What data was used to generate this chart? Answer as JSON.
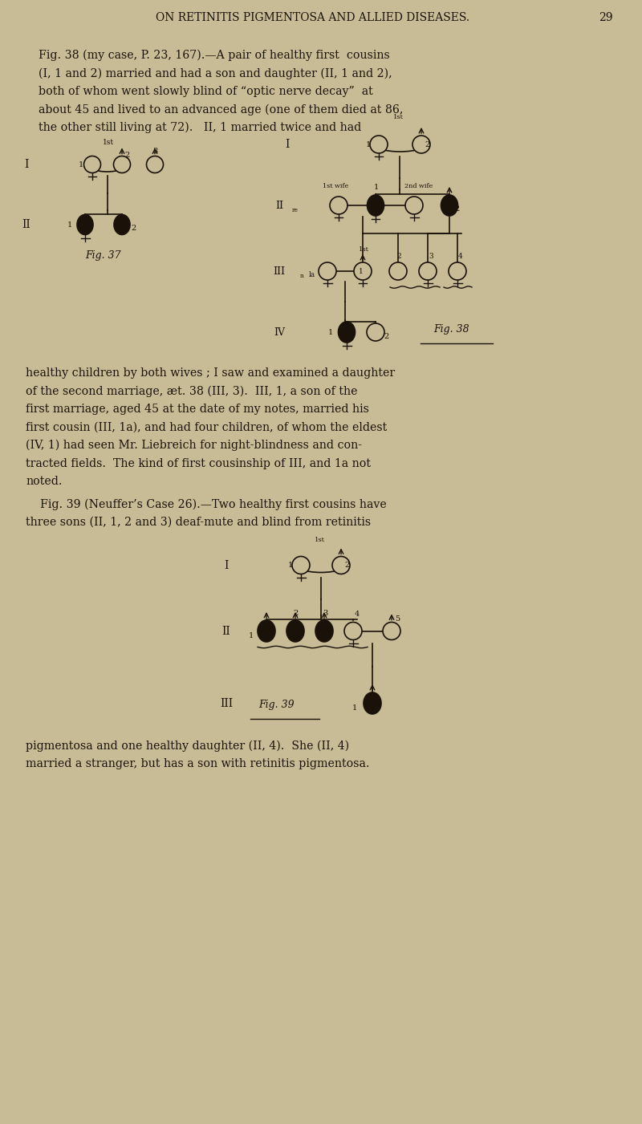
{
  "background_color": "#c8bc96",
  "text_color": "#1a1208",
  "header_text": "ON RETINITIS PIGMENTOSA AND ALLIED DISEASES.",
  "header_page": "29",
  "fig_width": 8.0,
  "fig_height": 14.01,
  "para1_lines": [
    "Fig. 38 (my case, P. 23, 167).—A pair of healthy first  cousins",
    "(I, 1 and 2) married and had a son and daughter (II, 1 and 2),",
    "both of whom went slowly blind of “optic nerve decay”  at",
    "about 45 and lived to an advanced age (one of them died at 86,",
    "the other still living at 72).   II, 1 married twice and had"
  ],
  "para2_lines": [
    "healthy children by both wives ; I saw and examined a daughter",
    "of the second marriage, æt. 38 (III, 3).  III, 1, a son of the",
    "first marriage, aged 45 at the date of my notes, married his",
    "first cousin (III, 1a), and had four children, of whom the eldest",
    "(IV, 1) had seen Mr. Liebreich for night-blindness and con-",
    "tracted fields.  The kind of first cousinship of III, and 1a not",
    "noted."
  ],
  "para3_lines": [
    "    Fig. 39 (Neuffer’s Case 26).—Two healthy first cousins have",
    "three sons (II, 1, 2 and 3) deaf-mute and blind from retinitis"
  ],
  "para4_lines": [
    "pigmentosa and one healthy daughter (II, 4).  She (II, 4)",
    "married a stranger, but has a son with retinitis pigmentosa."
  ]
}
